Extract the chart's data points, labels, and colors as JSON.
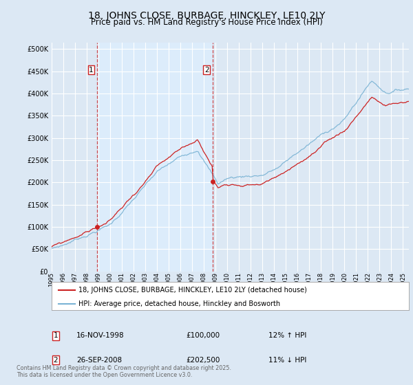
{
  "title": "18, JOHNS CLOSE, BURBAGE, HINCKLEY, LE10 2LY",
  "subtitle": "Price paid vs. HM Land Registry's House Price Index (HPI)",
  "ytick_values": [
    0,
    50000,
    100000,
    150000,
    200000,
    250000,
    300000,
    350000,
    400000,
    450000,
    500000
  ],
  "ylim": [
    0,
    515000
  ],
  "xlim_start": 1995.0,
  "xlim_end": 2025.5,
  "hpi_color": "#7ab3d4",
  "price_color": "#cc2222",
  "vline_color": "#cc2222",
  "marker_color": "#cc2222",
  "shade_color": "#ddeeff",
  "transaction1_x": 1998.88,
  "transaction1_y": 100000,
  "transaction2_x": 2008.73,
  "transaction2_y": 202500,
  "legend_label_price": "18, JOHNS CLOSE, BURBAGE, HINCKLEY, LE10 2LY (detached house)",
  "legend_label_hpi": "HPI: Average price, detached house, Hinckley and Bosworth",
  "annotation1_date": "16-NOV-1998",
  "annotation1_price": "£100,000",
  "annotation1_hpi": "12% ↑ HPI",
  "annotation2_date": "26-SEP-2008",
  "annotation2_price": "£202,500",
  "annotation2_hpi": "11% ↓ HPI",
  "footer": "Contains HM Land Registry data © Crown copyright and database right 2025.\nThis data is licensed under the Open Government Licence v3.0.",
  "bg_color": "#dce8f4",
  "plot_bg_color": "#dce8f4",
  "grid_color": "#ffffff",
  "title_fontsize": 10,
  "subtitle_fontsize": 8.5
}
